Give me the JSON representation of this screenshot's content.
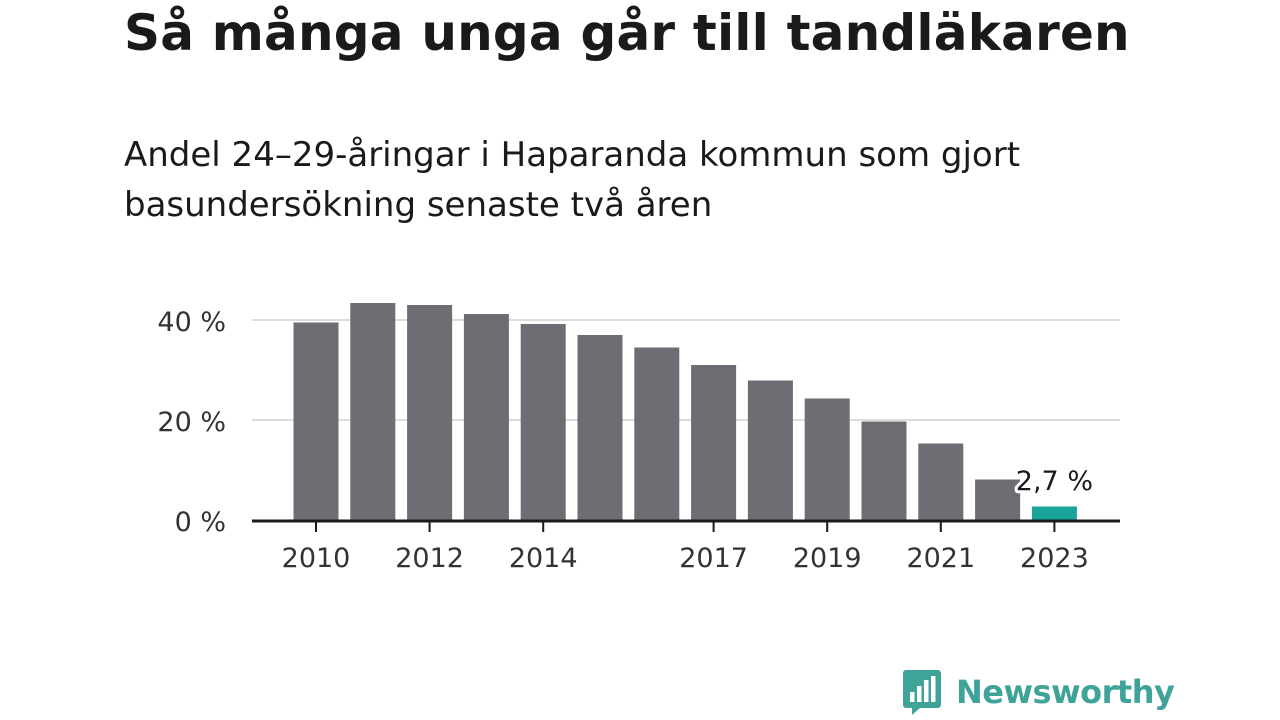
{
  "title": "Så många unga går till tandläkaren",
  "subtitle": "Andel 24–29-åringar i Haparanda kommun som gjort basundersökning senaste två åren",
  "brand": {
    "name": "Newsworthy",
    "color": "#3fa39a",
    "icon": "bar-chart-speech-bubble-icon"
  },
  "chart_data": {
    "type": "bar",
    "x": [
      2010,
      2011,
      2012,
      2013,
      2014,
      2015,
      2016,
      2017,
      2018,
      2019,
      2020,
      2021,
      2022,
      2023
    ],
    "values": [
      39.5,
      43.4,
      43.0,
      41.2,
      39.2,
      37.0,
      34.5,
      31.0,
      27.9,
      24.3,
      19.7,
      15.3,
      8.1,
      2.7
    ],
    "x_tick_labels": [
      {
        "x": 2010,
        "label": "2010"
      },
      {
        "x": 2012,
        "label": "2012"
      },
      {
        "x": 2014,
        "label": "2014"
      },
      {
        "x": 2017,
        "label": "2017"
      },
      {
        "x": 2019,
        "label": "2019"
      },
      {
        "x": 2021,
        "label": "2021"
      },
      {
        "x": 2023,
        "label": "2023"
      }
    ],
    "y_ticks": [
      {
        "value": 0,
        "label": "0 %"
      },
      {
        "value": 20,
        "label": "20 %"
      },
      {
        "value": 40,
        "label": "40 %"
      }
    ],
    "ylim": [
      0,
      45
    ],
    "grid": true,
    "bar_color": "#6d6d74",
    "highlight": {
      "x": 2023,
      "color": "#1aa39a",
      "label": "2,7 %"
    },
    "title": "",
    "xlabel": "",
    "ylabel": ""
  }
}
